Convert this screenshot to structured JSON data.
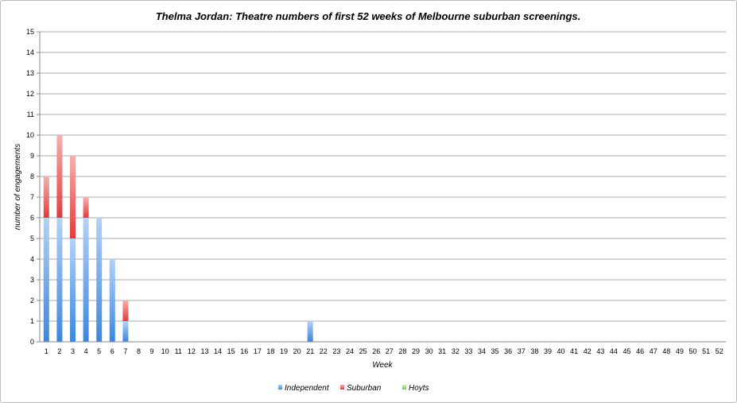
{
  "chart_data": {
    "type": "bar",
    "stacked": true,
    "title": "Thelma Jordan: Theatre numbers of first 52 weeks of Melbourne suburban screenings.",
    "xlabel": "Week",
    "ylabel": "number of engagements",
    "ylim": [
      0,
      15
    ],
    "yticks": [
      "0",
      "1",
      "2",
      "3",
      "4",
      "5",
      "6",
      "7",
      "8",
      "9",
      "10",
      "11",
      "12",
      "13",
      "14",
      "15"
    ],
    "categories": [
      "1",
      "2",
      "3",
      "4",
      "5",
      "6",
      "7",
      "8",
      "9",
      "10",
      "11",
      "12",
      "13",
      "14",
      "15",
      "16",
      "17",
      "18",
      "19",
      "20",
      "21",
      "22",
      "23",
      "24",
      "25",
      "26",
      "27",
      "28",
      "29",
      "30",
      "31",
      "32",
      "33",
      "34",
      "35",
      "36",
      "37",
      "38",
      "39",
      "40",
      "41",
      "42",
      "43",
      "44",
      "45",
      "46",
      "47",
      "48",
      "49",
      "50",
      "51",
      "52"
    ],
    "series": [
      {
        "name": "Independent",
        "color": "#4a90e2",
        "values": [
          6,
          6,
          5,
          6,
          6,
          4,
          1,
          0,
          0,
          0,
          0,
          0,
          0,
          0,
          0,
          0,
          0,
          0,
          0,
          0,
          1,
          0,
          0,
          0,
          0,
          0,
          0,
          0,
          0,
          0,
          0,
          0,
          0,
          0,
          0,
          0,
          0,
          0,
          0,
          0,
          0,
          0,
          0,
          0,
          0,
          0,
          0,
          0,
          0,
          0,
          0,
          0
        ]
      },
      {
        "name": "Suburban",
        "color": "#ec4b4b",
        "values": [
          2,
          4,
          4,
          1,
          0,
          0,
          1,
          0,
          0,
          0,
          0,
          0,
          0,
          0,
          0,
          0,
          0,
          0,
          0,
          0,
          0,
          0,
          0,
          0,
          0,
          0,
          0,
          0,
          0,
          0,
          0,
          0,
          0,
          0,
          0,
          0,
          0,
          0,
          0,
          0,
          0,
          0,
          0,
          0,
          0,
          0,
          0,
          0,
          0,
          0,
          0,
          0
        ]
      },
      {
        "name": "Hoyts",
        "color": "#8fd16a",
        "values": [
          0,
          0,
          0,
          0,
          0,
          0,
          0,
          0,
          0,
          0,
          0,
          0,
          0,
          0,
          0,
          0,
          0,
          0,
          0,
          0,
          0,
          0,
          0,
          0,
          0,
          0,
          0,
          0,
          0,
          0,
          0,
          0,
          0,
          0,
          0,
          0,
          0,
          0,
          0,
          0,
          0,
          0,
          0,
          0,
          0,
          0,
          0,
          0,
          0,
          0,
          0,
          0
        ]
      }
    ],
    "grid": true,
    "legend_position": "bottom"
  }
}
